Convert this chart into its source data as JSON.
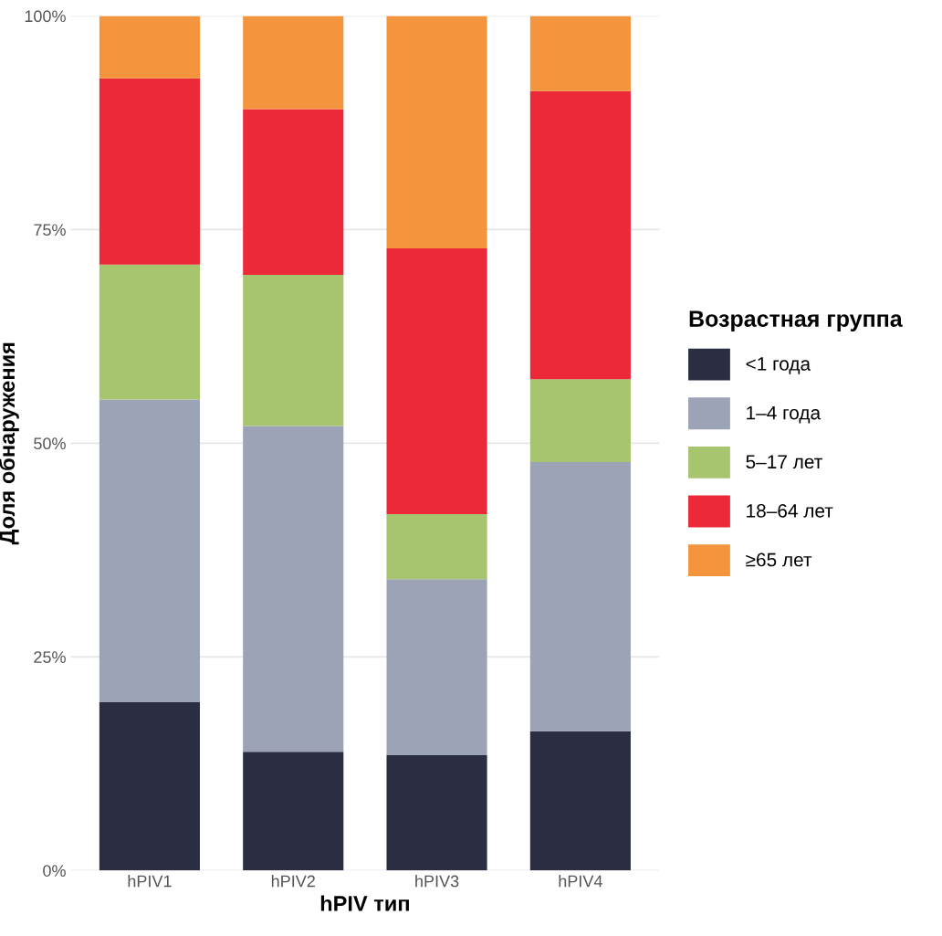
{
  "chart_data": {
    "type": "bar",
    "stacked": true,
    "xlabel": "hPIV тип",
    "ylabel": "Доля обнаружения",
    "legend_title": "Возрастная группа",
    "legend": "right",
    "grid": "y",
    "categories": [
      "hPIV1",
      "hPIV2",
      "hPIV3",
      "hPIV4"
    ],
    "ylim": [
      0,
      100
    ],
    "yticks": [
      {
        "value": 0,
        "label": "0%"
      },
      {
        "value": 25,
        "label": "25%"
      },
      {
        "value": 50,
        "label": "50%"
      },
      {
        "value": 75,
        "label": "75%"
      },
      {
        "value": 100,
        "label": "100%"
      }
    ],
    "series": [
      {
        "name": "<1 года",
        "color": "#2b2d42",
        "values": [
          19.7,
          13.9,
          13.5,
          16.3
        ]
      },
      {
        "name": "1–4 года",
        "color": "#9ca3b6",
        "values": [
          35.4,
          38.1,
          20.6,
          31.5
        ]
      },
      {
        "name": "5–17 лет",
        "color": "#a7c46e",
        "values": [
          15.8,
          17.7,
          7.6,
          9.7
        ]
      },
      {
        "name": "18–64 лет",
        "color": "#ec2939",
        "values": [
          21.8,
          19.4,
          31.1,
          33.7
        ]
      },
      {
        "name": "≥65 лет",
        "color": "#f4943c",
        "values": [
          7.3,
          10.9,
          27.2,
          8.8
        ]
      }
    ]
  }
}
